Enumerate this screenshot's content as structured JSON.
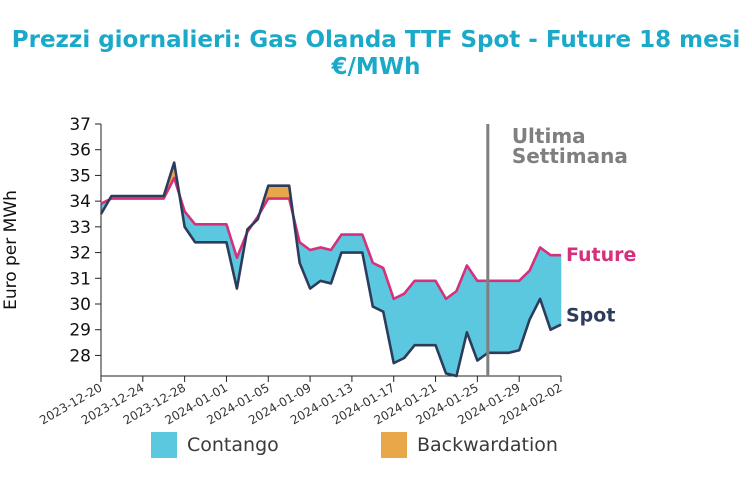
{
  "title": {
    "line1": "Prezzi giornalieri: Gas Olanda TTF Spot - Future 18 mesi",
    "line2": "€/MWh"
  },
  "legend": {
    "contango_label": "Contango",
    "backwardation_label": "Backwardation"
  },
  "colors": {
    "title": "#1aa9c9",
    "spot": "#2d3c5a",
    "future": "#d6307c",
    "contango": "#5bc8e0",
    "backwardation": "#e8a84a",
    "marker": "#7f7f7f"
  },
  "chart_data": {
    "type": "area",
    "ylabel": "Euro per MWh",
    "ylim": [
      27.2,
      37
    ],
    "yticks": [
      28,
      29,
      30,
      31,
      32,
      33,
      34,
      35,
      36,
      37
    ],
    "xlim": [
      "2023-12-20",
      "2024-02-02"
    ],
    "xticks": [
      "2023-12-20",
      "2023-12-24",
      "2023-12-28",
      "2024-01-01",
      "2024-01-05",
      "2024-01-09",
      "2024-01-13",
      "2024-01-17",
      "2024-01-21",
      "2024-01-25",
      "2024-01-29",
      "2024-02-02"
    ],
    "marker": {
      "date": "2024-01-26",
      "label_line1": "Ultima",
      "label_line2": "Settimana"
    },
    "series_labels": {
      "future": "Future",
      "spot": "Spot"
    },
    "spot": [
      [
        "2023-12-20",
        33.5
      ],
      [
        "2023-12-21",
        34.2
      ],
      [
        "2023-12-22",
        34.2
      ],
      [
        "2023-12-23",
        34.2
      ],
      [
        "2023-12-24",
        34.2
      ],
      [
        "2023-12-25",
        34.2
      ],
      [
        "2023-12-26",
        34.2
      ],
      [
        "2023-12-27",
        35.5
      ],
      [
        "2023-12-28",
        33.0
      ],
      [
        "2023-12-29",
        32.4
      ],
      [
        "2023-12-30",
        32.4
      ],
      [
        "2023-12-31",
        32.4
      ],
      [
        "2024-01-01",
        32.4
      ],
      [
        "2024-01-02",
        30.6
      ],
      [
        "2024-01-03",
        32.9
      ],
      [
        "2024-01-04",
        33.3
      ],
      [
        "2024-01-05",
        34.6
      ],
      [
        "2024-01-06",
        34.6
      ],
      [
        "2024-01-07",
        34.6
      ],
      [
        "2024-01-08",
        31.6
      ],
      [
        "2024-01-09",
        30.6
      ],
      [
        "2024-01-10",
        30.9
      ],
      [
        "2024-01-11",
        30.8
      ],
      [
        "2024-01-12",
        32.0
      ],
      [
        "2024-01-13",
        32.0
      ],
      [
        "2024-01-14",
        32.0
      ],
      [
        "2024-01-15",
        29.9
      ],
      [
        "2024-01-16",
        29.7
      ],
      [
        "2024-01-17",
        27.7
      ],
      [
        "2024-01-18",
        27.9
      ],
      [
        "2024-01-19",
        28.4
      ],
      [
        "2024-01-20",
        28.4
      ],
      [
        "2024-01-21",
        28.4
      ],
      [
        "2024-01-22",
        27.3
      ],
      [
        "2024-01-23",
        27.2
      ],
      [
        "2024-01-24",
        28.9
      ],
      [
        "2024-01-25",
        27.8
      ],
      [
        "2024-01-26",
        28.1
      ],
      [
        "2024-01-27",
        28.1
      ],
      [
        "2024-01-28",
        28.1
      ],
      [
        "2024-01-29",
        28.2
      ],
      [
        "2024-01-30",
        29.4
      ],
      [
        "2024-01-31",
        30.2
      ],
      [
        "2024-02-01",
        29.0
      ],
      [
        "2024-02-02",
        29.2
      ]
    ],
    "future": [
      [
        "2023-12-20",
        33.9
      ],
      [
        "2023-12-21",
        34.1
      ],
      [
        "2023-12-22",
        34.1
      ],
      [
        "2023-12-23",
        34.1
      ],
      [
        "2023-12-24",
        34.1
      ],
      [
        "2023-12-25",
        34.1
      ],
      [
        "2023-12-26",
        34.1
      ],
      [
        "2023-12-27",
        34.9
      ],
      [
        "2023-12-28",
        33.6
      ],
      [
        "2023-12-29",
        33.1
      ],
      [
        "2023-12-30",
        33.1
      ],
      [
        "2023-12-31",
        33.1
      ],
      [
        "2024-01-01",
        33.1
      ],
      [
        "2024-01-02",
        31.8
      ],
      [
        "2024-01-03",
        32.8
      ],
      [
        "2024-01-04",
        33.4
      ],
      [
        "2024-01-05",
        34.1
      ],
      [
        "2024-01-06",
        34.1
      ],
      [
        "2024-01-07",
        34.1
      ],
      [
        "2024-01-08",
        32.4
      ],
      [
        "2024-01-09",
        32.1
      ],
      [
        "2024-01-10",
        32.2
      ],
      [
        "2024-01-11",
        32.1
      ],
      [
        "2024-01-12",
        32.7
      ],
      [
        "2024-01-13",
        32.7
      ],
      [
        "2024-01-14",
        32.7
      ],
      [
        "2024-01-15",
        31.6
      ],
      [
        "2024-01-16",
        31.4
      ],
      [
        "2024-01-17",
        30.2
      ],
      [
        "2024-01-18",
        30.4
      ],
      [
        "2024-01-19",
        30.9
      ],
      [
        "2024-01-20",
        30.9
      ],
      [
        "2024-01-21",
        30.9
      ],
      [
        "2024-01-22",
        30.2
      ],
      [
        "2024-01-23",
        30.5
      ],
      [
        "2024-01-24",
        31.5
      ],
      [
        "2024-01-25",
        30.9
      ],
      [
        "2024-01-26",
        30.9
      ],
      [
        "2024-01-27",
        30.9
      ],
      [
        "2024-01-28",
        30.9
      ],
      [
        "2024-01-29",
        30.9
      ],
      [
        "2024-01-30",
        31.3
      ],
      [
        "2024-01-31",
        32.2
      ],
      [
        "2024-02-01",
        31.9
      ],
      [
        "2024-02-02",
        31.9
      ]
    ]
  }
}
